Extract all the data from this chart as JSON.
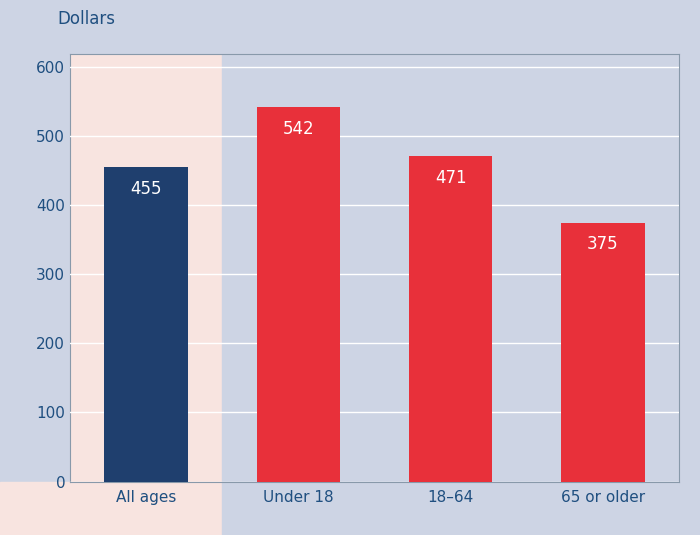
{
  "categories": [
    "All ages",
    "Under 18",
    "18–64",
    "65 or older"
  ],
  "values": [
    455,
    542,
    471,
    375
  ],
  "bar_colors": [
    "#1f3f6e",
    "#e8303a",
    "#e8303a",
    "#e8303a"
  ],
  "bg_left": "#f8e4e0",
  "bg_right": "#cdd4e4",
  "ylabel": "Dollars",
  "ylim": [
    0,
    620
  ],
  "yticks": [
    0,
    100,
    200,
    300,
    400,
    500,
    600
  ],
  "label_color": "#ffffff",
  "label_fontsize": 12,
  "ylabel_fontsize": 12,
  "ylabel_color": "#1f4f80",
  "tick_color": "#1f4f80",
  "grid_color": "#ffffff",
  "border_color": "#8899aa",
  "fig_bg": "#cdd4e4"
}
